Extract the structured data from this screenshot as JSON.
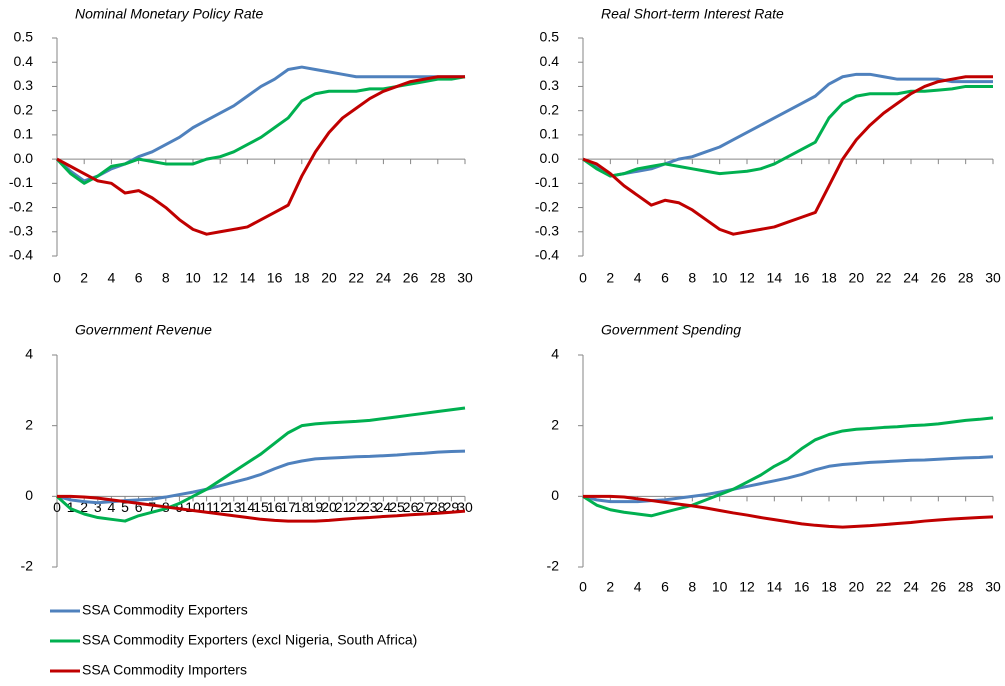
{
  "chart_data": [
    {
      "type": "line",
      "title": "Nominal Monetary Policy Rate",
      "x": [
        0,
        1,
        2,
        3,
        4,
        5,
        6,
        7,
        8,
        9,
        10,
        11,
        12,
        13,
        14,
        15,
        16,
        17,
        18,
        19,
        20,
        21,
        22,
        23,
        24,
        25,
        26,
        27,
        28,
        29,
        30
      ],
      "xlim": [
        0,
        30
      ],
      "xticks": [
        0,
        2,
        4,
        6,
        8,
        10,
        12,
        14,
        16,
        18,
        20,
        22,
        24,
        26,
        28,
        30
      ],
      "ylim": [
        -0.4,
        0.5
      ],
      "yticks": [
        -0.4,
        -0.3,
        -0.2,
        -0.1,
        {
          "value": 0,
          "label": "0.0"
        },
        0.1,
        0.2,
        0.3,
        0.4,
        0.5
      ],
      "series": [
        {
          "color": "#4f81bd",
          "values": [
            0,
            -0.05,
            -0.09,
            -0.07,
            -0.04,
            -0.02,
            0.01,
            0.03,
            0.06,
            0.09,
            0.13,
            0.16,
            0.19,
            0.22,
            0.26,
            0.3,
            0.33,
            0.37,
            0.38,
            0.37,
            0.36,
            0.35,
            0.34,
            0.34,
            0.34,
            0.34,
            0.34,
            0.34,
            0.34,
            0.34,
            0.34
          ]
        },
        {
          "color": "#00b050",
          "values": [
            0,
            -0.06,
            -0.1,
            -0.07,
            -0.03,
            -0.02,
            0,
            -0.01,
            -0.02,
            -0.02,
            -0.02,
            0,
            0.01,
            0.03,
            0.06,
            0.09,
            0.13,
            0.17,
            0.24,
            0.27,
            0.28,
            0.28,
            0.28,
            0.29,
            0.29,
            0.3,
            0.31,
            0.32,
            0.33,
            0.33,
            0.34
          ]
        },
        {
          "color": "#c00000",
          "values": [
            0,
            -0.03,
            -0.06,
            -0.09,
            -0.1,
            -0.14,
            -0.13,
            -0.16,
            -0.2,
            -0.25,
            -0.29,
            -0.31,
            -0.3,
            -0.29,
            -0.28,
            -0.25,
            -0.22,
            -0.19,
            -0.07,
            0.03,
            0.11,
            0.17,
            0.21,
            0.25,
            0.28,
            0.3,
            0.32,
            0.33,
            0.34,
            0.34,
            0.34
          ]
        }
      ]
    },
    {
      "type": "line",
      "title": "Real Short-term Interest Rate",
      "x": [
        0,
        1,
        2,
        3,
        4,
        5,
        6,
        7,
        8,
        9,
        10,
        11,
        12,
        13,
        14,
        15,
        16,
        17,
        18,
        19,
        20,
        21,
        22,
        23,
        24,
        25,
        26,
        27,
        28,
        29,
        30
      ],
      "xlim": [
        0,
        30
      ],
      "xticks": [
        0,
        2,
        4,
        6,
        8,
        10,
        12,
        14,
        16,
        18,
        20,
        22,
        24,
        26,
        28,
        30
      ],
      "ylim": [
        -0.4,
        0.5
      ],
      "yticks": [
        -0.4,
        -0.3,
        -0.2,
        -0.1,
        {
          "value": 0,
          "label": "0.0"
        },
        0.1,
        0.2,
        0.3,
        0.4,
        0.5
      ],
      "series": [
        {
          "color": "#4f81bd",
          "values": [
            0,
            -0.03,
            -0.07,
            -0.06,
            -0.05,
            -0.04,
            -0.02,
            0,
            0.01,
            0.03,
            0.05,
            0.08,
            0.11,
            0.14,
            0.17,
            0.2,
            0.23,
            0.26,
            0.31,
            0.34,
            0.35,
            0.35,
            0.34,
            0.33,
            0.33,
            0.33,
            0.33,
            0.32,
            0.32,
            0.32,
            0.32
          ]
        },
        {
          "color": "#00b050",
          "values": [
            0,
            -0.04,
            -0.07,
            -0.06,
            -0.04,
            -0.03,
            -0.02,
            -0.03,
            -0.04,
            -0.05,
            -0.06,
            -0.055,
            -0.05,
            -0.04,
            -0.02,
            0.01,
            0.04,
            0.07,
            0.17,
            0.23,
            0.26,
            0.27,
            0.27,
            0.27,
            0.28,
            0.28,
            0.285,
            0.29,
            0.3,
            0.3,
            0.3
          ]
        },
        {
          "color": "#c00000",
          "values": [
            0,
            -0.02,
            -0.06,
            -0.11,
            -0.15,
            -0.19,
            -0.17,
            -0.18,
            -0.21,
            -0.25,
            -0.29,
            -0.31,
            -0.3,
            -0.29,
            -0.28,
            -0.26,
            -0.24,
            -0.22,
            -0.11,
            0,
            0.08,
            0.14,
            0.19,
            0.23,
            0.27,
            0.3,
            0.32,
            0.33,
            0.34,
            0.34,
            0.34
          ]
        }
      ]
    },
    {
      "type": "line",
      "title": "Government Revenue",
      "x": [
        0,
        1,
        2,
        3,
        4,
        5,
        6,
        7,
        8,
        9,
        10,
        11,
        12,
        13,
        14,
        15,
        16,
        17,
        18,
        19,
        20,
        21,
        22,
        23,
        24,
        25,
        26,
        27,
        28,
        29,
        30
      ],
      "xlim": [
        0,
        30
      ],
      "xticks": [
        0,
        1,
        2,
        3,
        4,
        5,
        6,
        7,
        8,
        9,
        10,
        11,
        12,
        13,
        14,
        15,
        16,
        17,
        18,
        19,
        20,
        21,
        22,
        23,
        24,
        25,
        26,
        27,
        28,
        29,
        30
      ],
      "ylim": [
        -2,
        4
      ],
      "yticks": [
        -2,
        0,
        2,
        4
      ],
      "series": [
        {
          "name": "SSA Commodity Exporters",
          "color": "#4f81bd",
          "values": [
            0,
            -0.1,
            -0.15,
            -0.18,
            -0.15,
            -0.12,
            -0.1,
            -0.08,
            -0.02,
            0.05,
            0.12,
            0.2,
            0.3,
            0.4,
            0.5,
            0.62,
            0.78,
            0.92,
            1.0,
            1.06,
            1.08,
            1.1,
            1.12,
            1.13,
            1.15,
            1.17,
            1.2,
            1.22,
            1.25,
            1.27,
            1.28
          ]
        },
        {
          "name": "SSA Commodity Exporters (excl Nigeria, South Africa)",
          "color": "#00b050",
          "values": [
            0,
            -0.35,
            -0.5,
            -0.6,
            -0.65,
            -0.7,
            -0.55,
            -0.45,
            -0.35,
            -0.2,
            0,
            0.2,
            0.45,
            0.7,
            0.95,
            1.2,
            1.5,
            1.8,
            2.0,
            2.05,
            2.08,
            2.1,
            2.12,
            2.15,
            2.2,
            2.25,
            2.3,
            2.35,
            2.4,
            2.45,
            2.5
          ]
        },
        {
          "name": "SSA Commodity Importers",
          "color": "#c00000",
          "values": [
            0,
            0,
            -0.02,
            -0.05,
            -0.1,
            -0.15,
            -0.2,
            -0.25,
            -0.3,
            -0.35,
            -0.4,
            -0.45,
            -0.5,
            -0.55,
            -0.6,
            -0.65,
            -0.68,
            -0.7,
            -0.7,
            -0.7,
            -0.68,
            -0.65,
            -0.62,
            -0.6,
            -0.57,
            -0.55,
            -0.52,
            -0.5,
            -0.48,
            -0.45,
            -0.42
          ]
        }
      ]
    },
    {
      "type": "line",
      "title": "Government Spending",
      "x": [
        0,
        1,
        2,
        3,
        4,
        5,
        6,
        7,
        8,
        9,
        10,
        11,
        12,
        13,
        14,
        15,
        16,
        17,
        18,
        19,
        20,
        21,
        22,
        23,
        24,
        25,
        26,
        27,
        28,
        29,
        30
      ],
      "xlim": [
        0,
        30
      ],
      "xticks": [
        0,
        2,
        4,
        6,
        8,
        10,
        12,
        14,
        16,
        18,
        20,
        22,
        24,
        26,
        28,
        30
      ],
      "ylim": [
        -2,
        4
      ],
      "yticks": [
        -2,
        0,
        2,
        4
      ],
      "series": [
        {
          "color": "#4f81bd",
          "values": [
            0,
            -0.1,
            -0.15,
            -0.15,
            -0.15,
            -0.12,
            -0.1,
            -0.05,
            0,
            0.05,
            0.12,
            0.2,
            0.28,
            0.36,
            0.44,
            0.52,
            0.62,
            0.75,
            0.85,
            0.9,
            0.93,
            0.96,
            0.98,
            1.0,
            1.02,
            1.03,
            1.05,
            1.07,
            1.09,
            1.1,
            1.12
          ]
        },
        {
          "color": "#00b050",
          "values": [
            0,
            -0.25,
            -0.38,
            -0.45,
            -0.5,
            -0.55,
            -0.45,
            -0.35,
            -0.25,
            -0.1,
            0.05,
            0.2,
            0.4,
            0.6,
            0.85,
            1.05,
            1.35,
            1.6,
            1.75,
            1.85,
            1.9,
            1.92,
            1.95,
            1.97,
            2.0,
            2.02,
            2.05,
            2.1,
            2.15,
            2.18,
            2.22
          ]
        },
        {
          "color": "#c00000",
          "values": [
            0,
            0,
            0,
            -0.02,
            -0.07,
            -0.12,
            -0.17,
            -0.22,
            -0.27,
            -0.33,
            -0.4,
            -0.47,
            -0.53,
            -0.6,
            -0.66,
            -0.72,
            -0.78,
            -0.82,
            -0.85,
            -0.87,
            -0.85,
            -0.83,
            -0.8,
            -0.77,
            -0.74,
            -0.7,
            -0.67,
            -0.64,
            -0.62,
            -0.6,
            -0.58
          ]
        }
      ]
    }
  ]
}
